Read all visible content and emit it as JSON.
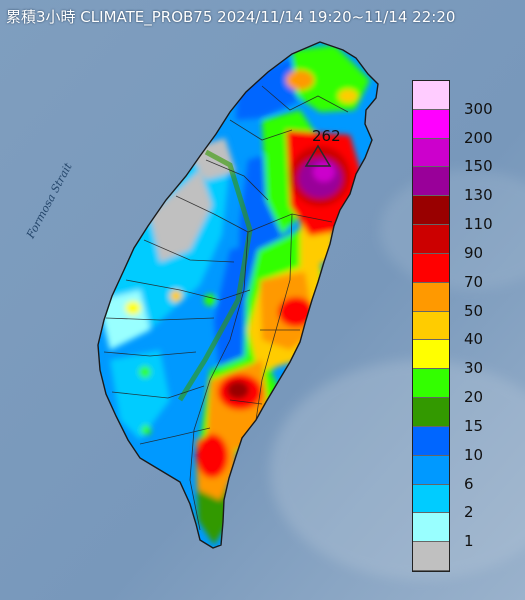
{
  "title": "累積3小時 CLIMATE_PROB75 2024/11/14 19:20~11/14 22:20",
  "map": {
    "water_label": "Formosa Strait",
    "peak_value": "262",
    "sea_color": "#7d9cbd",
    "region_icon": "taiwan-island-icon"
  },
  "legend": {
    "unit_note": "",
    "levels": [
      {
        "label": "300",
        "color": "#ffccff"
      },
      {
        "label": "200",
        "color": "#ff00ff"
      },
      {
        "label": "150",
        "color": "#cc00cc"
      },
      {
        "label": "130",
        "color": "#990099"
      },
      {
        "label": "110",
        "color": "#990000"
      },
      {
        "label": "90",
        "color": "#cc0000"
      },
      {
        "label": "70",
        "color": "#ff0000"
      },
      {
        "label": "50",
        "color": "#ff9900"
      },
      {
        "label": "40",
        "color": "#ffcc00"
      },
      {
        "label": "30",
        "color": "#ffff00"
      },
      {
        "label": "20",
        "color": "#33ff00"
      },
      {
        "label": "15",
        "color": "#339900"
      },
      {
        "label": "10",
        "color": "#0066ff"
      },
      {
        "label": "6",
        "color": "#0099ff"
      },
      {
        "label": "2",
        "color": "#00ccff"
      },
      {
        "label": "1",
        "color": "#99ffff"
      },
      {
        "label": "",
        "color": "#c0c0c0"
      }
    ]
  }
}
